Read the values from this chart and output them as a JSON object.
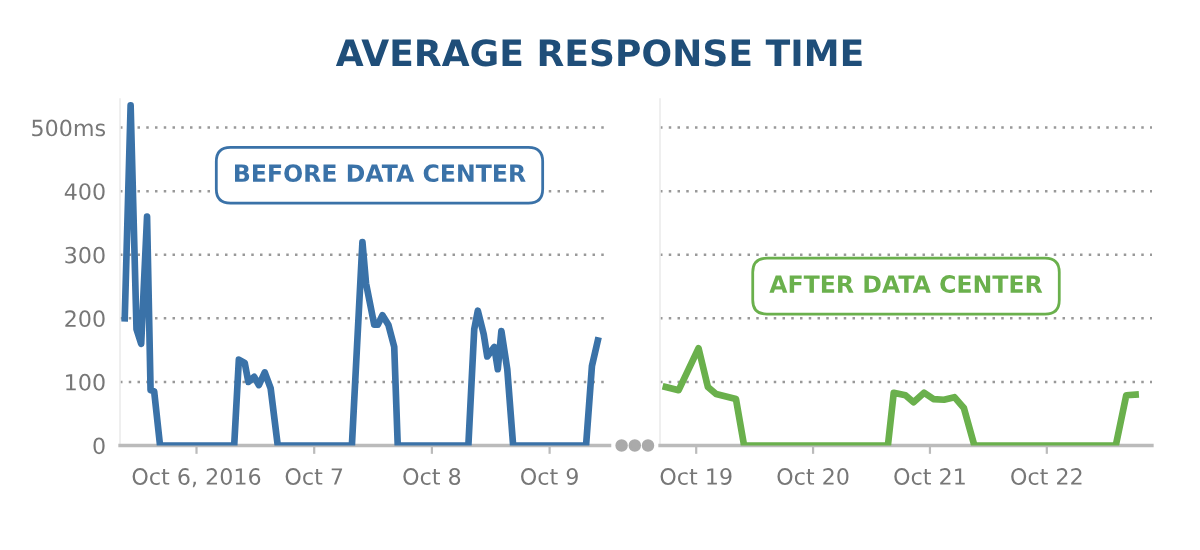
{
  "chart_data": [
    {
      "type": "line",
      "title": "AVERAGE RESPONSE TIME",
      "series": [
        {
          "name": "BEFORE DATA CENTER",
          "color": "#3a72a8",
          "x": [
            "2016-10-05T09:22",
            "2016-10-05T10:34",
            "2016-10-05T11:46",
            "2016-10-05T12:43",
            "2016-10-05T13:55",
            "2016-10-05T14:38",
            "2016-10-05T15:22",
            "2016-10-05T16:34",
            "2016-10-06T07:41",
            "2016-10-06T08:38",
            "2016-10-06T09:50",
            "2016-10-06T10:34",
            "2016-10-06T11:46",
            "2016-10-06T12:43",
            "2016-10-06T13:55",
            "2016-10-06T15:07",
            "2016-10-06T16:34",
            "2016-10-07T07:41",
            "2016-10-07T09:50",
            "2016-10-07T10:34",
            "2016-10-07T12:14",
            "2016-10-07T12:58",
            "2016-10-07T13:55",
            "2016-10-07T15:07",
            "2016-10-07T16:19",
            "2016-10-07T17:02",
            "2016-10-08T07:26",
            "2016-10-08T08:38",
            "2016-10-08T09:22",
            "2016-10-08T10:34",
            "2016-10-08T11:17",
            "2016-10-08T12:43",
            "2016-10-08T13:26",
            "2016-10-08T14:10",
            "2016-10-08T15:22",
            "2016-10-08T16:34",
            "2016-10-09T07:26",
            "2016-10-09T08:38",
            "2016-10-09T09:50"
          ],
          "values": [
            200,
            535,
            183,
            160,
            360,
            87,
            85,
            0,
            0,
            135,
            130,
            100,
            108,
            95,
            115,
            90,
            0,
            0,
            320,
            255,
            190,
            190,
            205,
            190,
            155,
            0,
            0,
            183,
            212,
            175,
            140,
            155,
            120,
            180,
            120,
            0,
            0,
            125,
            165
          ]
        }
      ],
      "xlim": [
        "2016-10-05T08:24",
        "2016-10-09T12:14"
      ],
      "xticks": [
        {
          "value": "2016-10-06",
          "label": "Oct 6, 2016"
        },
        {
          "value": "2016-10-07",
          "label": "Oct 7"
        },
        {
          "value": "2016-10-08",
          "label": "Oct 8"
        },
        {
          "value": "2016-10-09",
          "label": "Oct 9"
        }
      ],
      "ylim": [
        0,
        545
      ],
      "yticks": [
        0,
        100,
        200,
        300,
        400,
        {
          "value": 500,
          "label": "500ms"
        }
      ],
      "grid": "y",
      "marker": "none",
      "line_style": "solid"
    },
    {
      "type": "line",
      "series": [
        {
          "name": "AFTER DATA CENTER",
          "color": "#6ab04c",
          "x": [
            "2016-10-18T17:46",
            "2016-10-18T20:24",
            "2016-10-19T00:29",
            "2016-10-19T02:24",
            "2016-10-19T04:05",
            "2016-10-19T08:10",
            "2016-10-19T09:50",
            "2016-10-20T15:22",
            "2016-10-20T16:34",
            "2016-10-20T18:58",
            "2016-10-20T20:38",
            "2016-10-20T22:48",
            "2016-10-21T00:43",
            "2016-10-21T02:53",
            "2016-10-21T05:02",
            "2016-10-21T06:58",
            "2016-10-21T09:07",
            "2016-10-22T14:10",
            "2016-10-22T16:19",
            "2016-10-22T18:14"
          ],
          "values": [
            92,
            87,
            153,
            92,
            81,
            73,
            0,
            0,
            83,
            79,
            68,
            83,
            73,
            72,
            76,
            59,
            0,
            0,
            79,
            80
          ]
        }
      ],
      "xlim": [
        "2016-10-18T16:34",
        "2016-10-22T21:36"
      ],
      "xticks": [
        {
          "value": "2016-10-19",
          "label": "Oct 19"
        },
        {
          "value": "2016-10-20",
          "label": "Oct 20"
        },
        {
          "value": "2016-10-21",
          "label": "Oct 21"
        },
        {
          "value": "2016-10-22",
          "label": "Oct 22"
        }
      ],
      "ylim": [
        0,
        545
      ],
      "yticks": [
        0,
        100,
        200,
        300,
        400,
        500
      ],
      "tick_labels": "x",
      "grid": "y",
      "marker": "none",
      "line_style": "solid"
    }
  ]
}
